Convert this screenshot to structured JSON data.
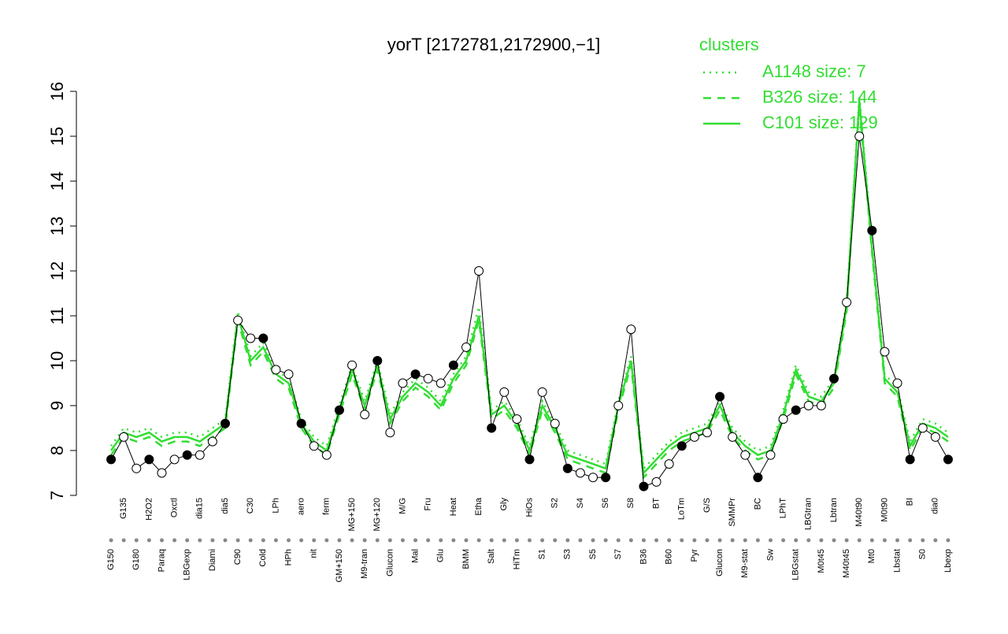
{
  "chart_data": {
    "type": "line",
    "title": "yorT [2172781,2172900,−1]",
    "legend_title": "clusters",
    "categories": [
      "G150",
      "G135",
      "G180",
      "H2O2",
      "Paraq",
      "Oxctl",
      "LBGexp",
      "dia15",
      "Diami",
      "dia5",
      "C90",
      "C30",
      "Cold",
      "LPh",
      "HPh",
      "aero",
      "nit",
      "ferm",
      "GM+150",
      "MG+150",
      "M9-tran",
      "MG+120",
      "Glucon",
      "M/G",
      "Mal",
      "Fru",
      "Glu",
      "Heat",
      "BMM",
      "Etha",
      "Salt",
      "Gly",
      "HiTm",
      "HiOs",
      "S1",
      "S2",
      "S3",
      "S4",
      "S5",
      "S6",
      "S7",
      "S8",
      "B36",
      "BT",
      "B60",
      "LoTm",
      "Pyr",
      "G/S",
      "Glucon",
      "SMMPr",
      "M9-stat",
      "BC",
      "Sw",
      "LPhT",
      "LBGstat",
      "LBGtran",
      "M0t45",
      "Lbtran",
      "M40t45",
      "M40t90",
      "Mt0",
      "M0t90",
      "Lbstat",
      "BI",
      "S0",
      "dia0",
      "Lbexp"
    ],
    "values": [
      7.8,
      8.3,
      7.6,
      7.8,
      7.5,
      7.8,
      7.9,
      7.9,
      8.2,
      8.6,
      10.9,
      10.5,
      10.5,
      9.8,
      9.7,
      8.6,
      8.1,
      7.9,
      8.9,
      9.9,
      8.8,
      10.0,
      8.4,
      9.5,
      9.7,
      9.6,
      9.5,
      9.9,
      10.3,
      12.0,
      8.5,
      9.3,
      8.7,
      7.8,
      9.3,
      8.6,
      7.6,
      7.5,
      7.4,
      7.4,
      9.0,
      10.7,
      7.2,
      7.3,
      7.7,
      8.1,
      8.3,
      8.4,
      9.2,
      8.3,
      7.9,
      7.4,
      7.9,
      8.7,
      8.9,
      9.0,
      9.0,
      9.6,
      11.3,
      15.0,
      12.9,
      10.2,
      9.5,
      7.8,
      8.5,
      8.3,
      7.8
    ],
    "color": "#000000",
    "series": [
      {
        "name": "A1148 size: 7",
        "color": "#33dd33",
        "dash": "dotted",
        "values": [
          8.1,
          8.5,
          8.4,
          8.5,
          8.3,
          8.4,
          8.4,
          8.3,
          8.5,
          8.7,
          11.1,
          10.1,
          10.4,
          9.8,
          9.6,
          8.7,
          8.3,
          8.1,
          9.0,
          9.9,
          9.1,
          10.0,
          8.8,
          9.3,
          9.6,
          9.4,
          9.1,
          9.7,
          10.1,
          11.2,
          8.9,
          9.1,
          8.7,
          8.1,
          9.1,
          8.6,
          8.0,
          7.9,
          7.8,
          7.7,
          9.1,
          10.1,
          7.6,
          7.9,
          8.2,
          8.4,
          8.5,
          8.6,
          9.1,
          8.5,
          8.2,
          8.0,
          8.1,
          8.9,
          9.9,
          9.3,
          9.2,
          9.6,
          11.3,
          15.9,
          12.6,
          9.7,
          9.4,
          8.2,
          8.7,
          8.6,
          8.4
        ]
      },
      {
        "name": "B326 size: 144",
        "color": "#33dd33",
        "dash": "dashed",
        "values": [
          7.9,
          8.3,
          8.2,
          8.3,
          8.1,
          8.2,
          8.2,
          8.1,
          8.3,
          8.5,
          10.9,
          9.9,
          10.2,
          9.6,
          9.4,
          8.5,
          8.1,
          7.9,
          8.8,
          9.7,
          8.9,
          9.8,
          8.6,
          9.1,
          9.4,
          9.2,
          8.9,
          9.5,
          9.9,
          10.9,
          8.7,
          8.9,
          8.5,
          7.9,
          8.9,
          8.4,
          7.8,
          7.7,
          7.6,
          7.5,
          8.9,
          9.9,
          7.4,
          7.7,
          8.0,
          8.2,
          8.3,
          8.4,
          8.9,
          8.3,
          8.0,
          7.8,
          7.9,
          8.7,
          9.7,
          9.1,
          9.0,
          9.4,
          11.1,
          15.7,
          12.4,
          9.5,
          9.2,
          8.0,
          8.5,
          8.4,
          8.2
        ]
      },
      {
        "name": "C101 size: 129",
        "color": "#33dd33",
        "dash": "solid",
        "values": [
          8.0,
          8.4,
          8.3,
          8.4,
          8.2,
          8.3,
          8.3,
          8.2,
          8.4,
          8.6,
          11.0,
          10.0,
          10.3,
          9.7,
          9.5,
          8.6,
          8.2,
          8.0,
          8.9,
          9.8,
          9.0,
          9.9,
          8.7,
          9.2,
          9.5,
          9.3,
          9.0,
          9.6,
          10.0,
          11.0,
          8.8,
          9.0,
          8.6,
          8.0,
          9.0,
          8.5,
          7.9,
          7.8,
          7.7,
          7.6,
          9.0,
          10.0,
          7.5,
          7.8,
          8.1,
          8.3,
          8.4,
          8.5,
          9.0,
          8.4,
          8.1,
          7.9,
          8.0,
          8.8,
          9.8,
          9.2,
          9.1,
          9.5,
          11.2,
          15.8,
          12.5,
          9.6,
          9.3,
          8.1,
          8.6,
          8.5,
          8.3
        ]
      }
    ],
    "ylim": [
      7,
      16
    ],
    "yticks": [
      7,
      8,
      9,
      10,
      11,
      12,
      13,
      14,
      15,
      16
    ],
    "legend": "top-right"
  }
}
